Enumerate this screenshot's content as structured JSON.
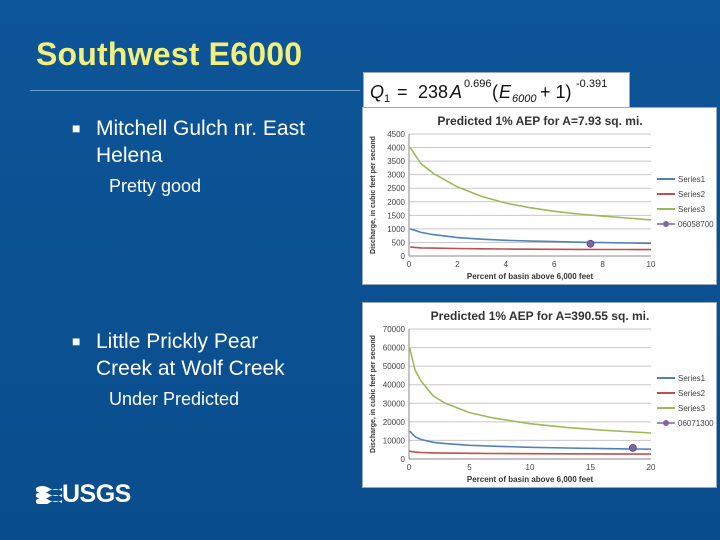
{
  "slide": {
    "title": "Southwest E6000",
    "items": [
      {
        "heading_line1": "Mitchell Gulch nr. East",
        "heading_line2": "Helena",
        "note": "Pretty good"
      },
      {
        "heading_line1": "Little Prickly Pear",
        "heading_line2": "Creek at Wolf Creek",
        "note": "Under Predicted"
      }
    ],
    "bullet_icon": "square-bullet-icon",
    "logo_text": "USGS",
    "logo_icon": "usgs-wave-icon"
  },
  "formula": {
    "lhs": "Q",
    "lhs_sub": "1",
    "equals": "=",
    "coef": "238",
    "var_a": "A",
    "exp_a": "0.696",
    "paren_open": "(",
    "var_e": "E",
    "sub_e": "6000",
    "plus_one": "+ 1)",
    "exp_e": "-0.391"
  },
  "colors": {
    "title": "#f2f07a",
    "series1": "#4f81bd",
    "series2": "#c0504d",
    "series3": "#9bbb59",
    "observed": "#8064a2"
  },
  "chart_data": [
    {
      "type": "line",
      "title": "Predicted 1% AEP for A=7.93 sq. mi.",
      "xlabel": "Percent of basin above 6,000 feet",
      "ylabel": "Discharge, in cubic feet per second",
      "xlim": [
        0,
        10
      ],
      "ylim": [
        0,
        4500
      ],
      "xticks": [
        "0",
        "2",
        "4",
        "6",
        "8",
        "10"
      ],
      "yticks": [
        "0",
        "500",
        "1000",
        "1500",
        "2000",
        "2500",
        "3000",
        "3500",
        "4000",
        "4500"
      ],
      "grid": true,
      "legend": "right",
      "series": [
        {
          "name": "Series1",
          "x": [
            0.05,
            0.5,
            1,
            2,
            3,
            4,
            5,
            6,
            7,
            8,
            9,
            10
          ],
          "values": [
            1000,
            870,
            790,
            680,
            620,
            580,
            550,
            530,
            510,
            495,
            480,
            470
          ]
        },
        {
          "name": "Series2",
          "x": [
            0.05,
            0.5,
            1,
            2,
            3,
            4,
            5,
            6,
            7,
            8,
            9,
            10
          ],
          "values": [
            330,
            300,
            290,
            275,
            265,
            258,
            252,
            248,
            244,
            241,
            238,
            236
          ]
        },
        {
          "name": "Series3",
          "x": [
            0.05,
            0.5,
            1,
            2,
            3,
            4,
            5,
            6,
            7,
            8,
            9,
            10
          ],
          "values": [
            4000,
            3400,
            3050,
            2550,
            2200,
            1950,
            1780,
            1650,
            1550,
            1470,
            1400,
            1330
          ]
        },
        {
          "name": "06058700",
          "x": [
            7.5
          ],
          "values": [
            450
          ],
          "marker": true
        }
      ]
    },
    {
      "type": "line",
      "title": "Predicted 1% AEP for A=390.55 sq. mi.",
      "xlabel": "Percent of basin above 6,000 feet",
      "ylabel": "Discharge, in cubic feet per second",
      "xlim": [
        0,
        20
      ],
      "ylim": [
        0,
        70000
      ],
      "xticks": [
        "0",
        "5",
        "10",
        "15",
        "20"
      ],
      "yticks": [
        "0",
        "10000",
        "20000",
        "30000",
        "40000",
        "50000",
        "60000",
        "70000"
      ],
      "grid": true,
      "legend": "right",
      "series": [
        {
          "name": "Series1",
          "x": [
            0.05,
            0.5,
            1,
            2,
            3,
            5,
            7,
            10,
            13,
            16,
            20
          ],
          "values": [
            15000,
            12000,
            10500,
            9000,
            8300,
            7400,
            6900,
            6300,
            5900,
            5600,
            5300
          ]
        },
        {
          "name": "Series2",
          "x": [
            0.05,
            0.5,
            1,
            2,
            3,
            5,
            7,
            10,
            13,
            16,
            20
          ],
          "values": [
            4200,
            3700,
            3500,
            3300,
            3200,
            3050,
            2950,
            2850,
            2780,
            2720,
            2650
          ]
        },
        {
          "name": "Series3",
          "x": [
            0.05,
            0.5,
            1,
            2,
            3,
            5,
            7,
            10,
            13,
            16,
            20
          ],
          "values": [
            60000,
            48000,
            42000,
            34000,
            30000,
            25000,
            22000,
            19000,
            17000,
            15500,
            14000
          ]
        },
        {
          "name": "06071300",
          "x": [
            18.5
          ],
          "values": [
            6000
          ],
          "marker": true
        }
      ]
    }
  ]
}
